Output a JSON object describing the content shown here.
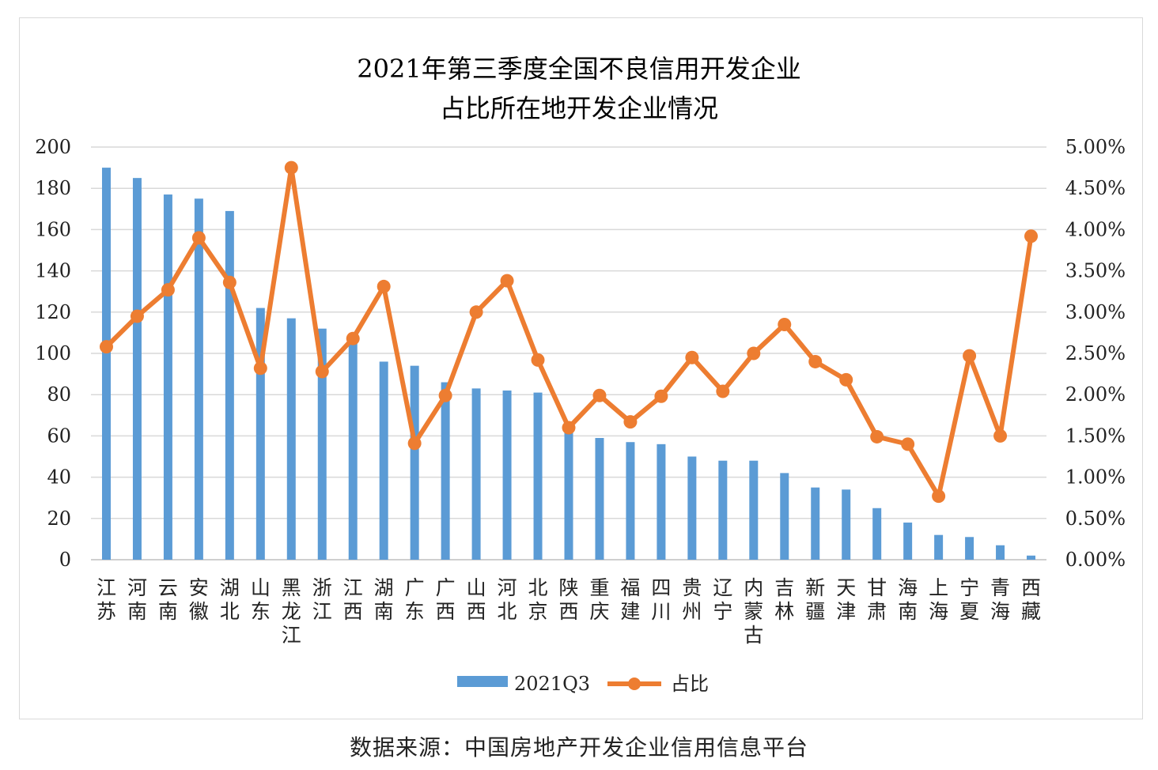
{
  "chart_data": {
    "type": "bar+line",
    "title_line1": "2021年第三季度全国不良信用开发企业",
    "title_line2": "占比所在地开发企业情况",
    "categories": [
      "江苏",
      "河南",
      "云南",
      "安徽",
      "湖北",
      "山东",
      "黑龙江",
      "浙江",
      "江西",
      "湖南",
      "广东",
      "广西",
      "山西",
      "河北",
      "北京",
      "陕西",
      "重庆",
      "福建",
      "四川",
      "贵州",
      "辽宁",
      "内蒙古",
      "吉林",
      "新疆",
      "天津",
      "甘肃",
      "海南",
      "上海",
      "宁夏",
      "青海",
      "西藏"
    ],
    "series": [
      {
        "name": "2021Q3",
        "type": "bar",
        "axis": "left",
        "color": "#5b9bd5",
        "values": [
          190,
          185,
          177,
          175,
          169,
          122,
          117,
          112,
          107,
          96,
          94,
          86,
          83,
          82,
          81,
          62,
          59,
          57,
          56,
          50,
          48,
          48,
          42,
          35,
          34,
          25,
          18,
          12,
          11,
          7,
          2
        ]
      },
      {
        "name": "占比",
        "type": "line",
        "axis": "right",
        "unit": "%",
        "color": "#ed7d31",
        "values": [
          2.58,
          2.95,
          3.27,
          3.9,
          3.36,
          2.32,
          4.75,
          2.28,
          2.68,
          3.31,
          1.41,
          1.99,
          3.0,
          3.38,
          2.42,
          1.6,
          1.99,
          1.67,
          1.98,
          2.45,
          2.04,
          2.5,
          2.85,
          2.4,
          2.18,
          1.49,
          1.4,
          0.77,
          2.47,
          1.5,
          3.92
        ]
      }
    ],
    "left_axis": {
      "min": 0,
      "max": 200,
      "step": 20,
      "tick_labels": [
        "0",
        "20",
        "40",
        "60",
        "80",
        "100",
        "120",
        "140",
        "160",
        "180",
        "200"
      ]
    },
    "right_axis": {
      "min": 0,
      "max": 5,
      "step": 0.5,
      "tick_labels": [
        "0.00%",
        "0.50%",
        "1.00%",
        "1.50%",
        "2.00%",
        "2.50%",
        "3.00%",
        "3.50%",
        "4.00%",
        "4.50%",
        "5.00%"
      ]
    },
    "grid": true,
    "legend_position": "bottom"
  },
  "footer": "数据来源：中国房地产开发企业信用信息平台"
}
